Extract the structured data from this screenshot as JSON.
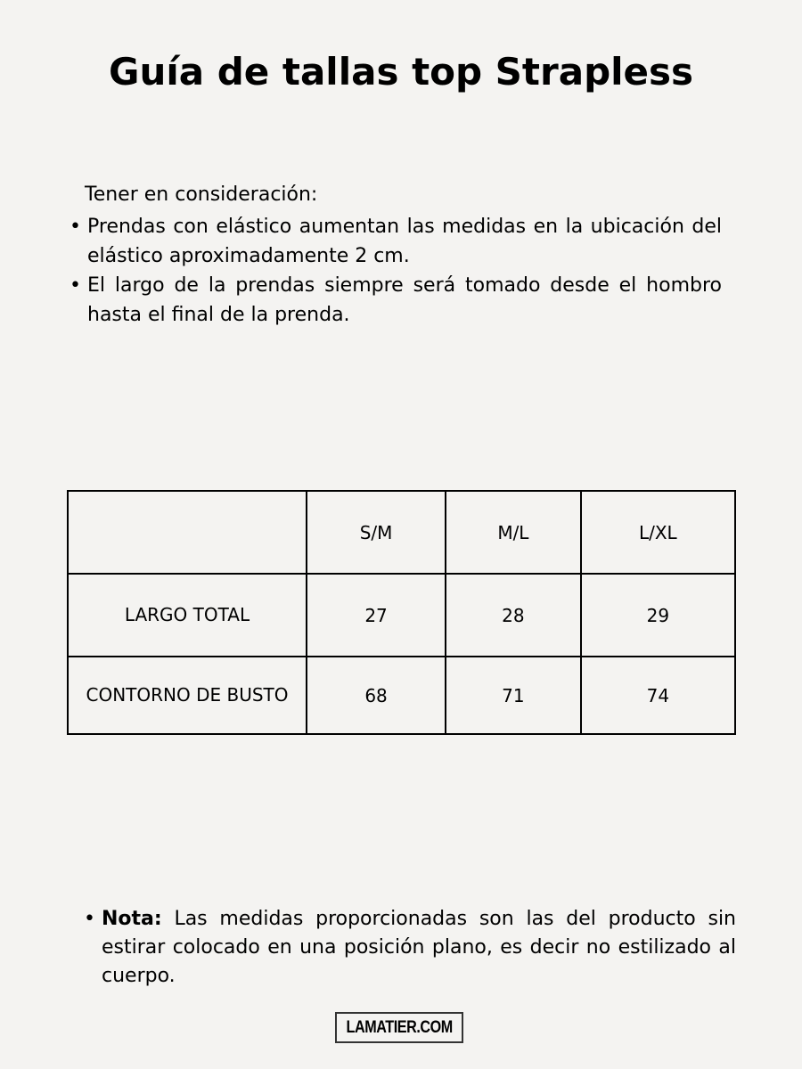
{
  "title": "Guía de tallas top Strapless",
  "intro": "Tener en consideración:",
  "bullets": [
    "Prendas con elástico aumentan las medidas en la ubicación del elástico aproximadamente 2 cm.",
    "El largo de la prendas siempre será tomado desde el hombro hasta el final de la prenda."
  ],
  "table": {
    "headers": [
      "",
      "S/M",
      "M/L",
      "L/XL"
    ],
    "rows": [
      [
        "LARGO TOTAL",
        "27",
        "28",
        "29"
      ],
      [
        "CONTORNO DE BUSTO",
        "68",
        "71",
        "74"
      ]
    ]
  },
  "note": {
    "label": "Nota:",
    "text": " Las medidas proporcionadas son las del producto sin estirar colocado en una posición plano, es decir no estilizado al cuerpo."
  },
  "logo": "LAMATIER.COM"
}
